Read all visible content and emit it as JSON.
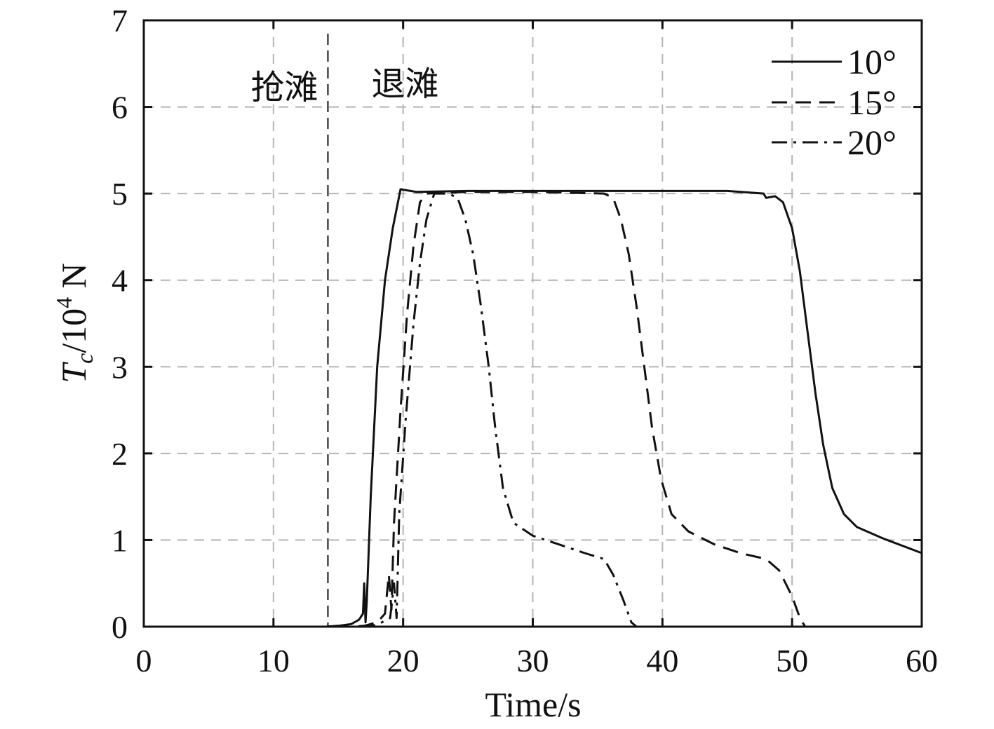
{
  "chart_data": {
    "type": "line",
    "title": "",
    "xlabel": "Time/s",
    "ylabel": {
      "main": "T",
      "subscript": "c",
      "rest": "/10",
      "superscript": "4",
      "unit": " N"
    },
    "xlim": [
      0,
      60
    ],
    "ylim": [
      0,
      7
    ],
    "x_ticks": [
      "0",
      "10",
      "20",
      "30",
      "40",
      "50",
      "60"
    ],
    "y_ticks": [
      "0",
      "1",
      "2",
      "3",
      "4",
      "5",
      "6",
      "7"
    ],
    "grid": true,
    "legend_position": "top-right",
    "annotations": {
      "marker_x": 14.2,
      "left_text": "抢滩",
      "right_text": "退滩"
    },
    "series": [
      {
        "name": "10°",
        "style": "solid",
        "color": "#111111",
        "points": [
          [
            0,
            0
          ],
          [
            14,
            0
          ],
          [
            15,
            0.01
          ],
          [
            16,
            0.03
          ],
          [
            16.6,
            0.08
          ],
          [
            16.9,
            0.15
          ],
          [
            17.0,
            0.5
          ],
          [
            17.1,
            0.05
          ],
          [
            17.2,
            0.3
          ],
          [
            17.5,
            1.5
          ],
          [
            18,
            3.0
          ],
          [
            18.6,
            4.0
          ],
          [
            19.2,
            4.6
          ],
          [
            19.8,
            5.05
          ],
          [
            21,
            5.02
          ],
          [
            25,
            5.03
          ],
          [
            30,
            5.03
          ],
          [
            35,
            5.03
          ],
          [
            40,
            5.03
          ],
          [
            45,
            5.03
          ],
          [
            47.8,
            5.0
          ],
          [
            48,
            4.95
          ],
          [
            48.7,
            4.97
          ],
          [
            49.3,
            4.9
          ],
          [
            50,
            4.6
          ],
          [
            50.6,
            4.1
          ],
          [
            51.2,
            3.4
          ],
          [
            51.8,
            2.7
          ],
          [
            52.4,
            2.1
          ],
          [
            53.1,
            1.6
          ],
          [
            54,
            1.3
          ],
          [
            55,
            1.15
          ],
          [
            57,
            1.02
          ],
          [
            60,
            0.85
          ]
        ]
      },
      {
        "name": "15°",
        "style": "dashed",
        "color": "#111111",
        "points": [
          [
            0,
            0
          ],
          [
            16,
            0
          ],
          [
            17,
            0.01
          ],
          [
            18,
            0.05
          ],
          [
            18.6,
            0.15
          ],
          [
            18.9,
            0.6
          ],
          [
            19.1,
            0.2
          ],
          [
            19.3,
            1.2
          ],
          [
            19.8,
            2.5
          ],
          [
            20.3,
            3.6
          ],
          [
            20.8,
            4.4
          ],
          [
            21.3,
            4.9
          ],
          [
            21.8,
            5.0
          ],
          [
            25,
            5.02
          ],
          [
            30,
            5.02
          ],
          [
            35.5,
            5.0
          ],
          [
            36.2,
            4.95
          ],
          [
            36.8,
            4.7
          ],
          [
            37.4,
            4.3
          ],
          [
            38.0,
            3.7
          ],
          [
            38.6,
            3.0
          ],
          [
            39.2,
            2.3
          ],
          [
            39.9,
            1.7
          ],
          [
            40.7,
            1.3
          ],
          [
            42,
            1.1
          ],
          [
            44,
            0.95
          ],
          [
            46,
            0.85
          ],
          [
            48,
            0.78
          ],
          [
            49,
            0.65
          ],
          [
            50,
            0.35
          ],
          [
            50.6,
            0.1
          ],
          [
            51,
            0
          ]
        ]
      },
      {
        "name": "20°",
        "style": "dashdot",
        "color": "#111111",
        "points": [
          [
            0,
            0
          ],
          [
            17,
            0
          ],
          [
            18,
            0.02
          ],
          [
            19,
            0.1
          ],
          [
            19.3,
            0.5
          ],
          [
            19.5,
            0.1
          ],
          [
            19.7,
            1.3
          ],
          [
            20.2,
            2.4
          ],
          [
            20.8,
            3.5
          ],
          [
            21.3,
            4.2
          ],
          [
            21.8,
            4.7
          ],
          [
            22.4,
            5.0
          ],
          [
            23.5,
            5.0
          ],
          [
            24.2,
            4.95
          ],
          [
            24.8,
            4.7
          ],
          [
            25.4,
            4.3
          ],
          [
            26.0,
            3.7
          ],
          [
            26.6,
            3.0
          ],
          [
            27.1,
            2.3
          ],
          [
            27.7,
            1.6
          ],
          [
            28.5,
            1.2
          ],
          [
            30,
            1.05
          ],
          [
            32,
            0.95
          ],
          [
            34,
            0.85
          ],
          [
            35.5,
            0.78
          ],
          [
            36.2,
            0.6
          ],
          [
            37,
            0.3
          ],
          [
            37.6,
            0.05
          ],
          [
            38,
            0
          ]
        ]
      }
    ]
  }
}
